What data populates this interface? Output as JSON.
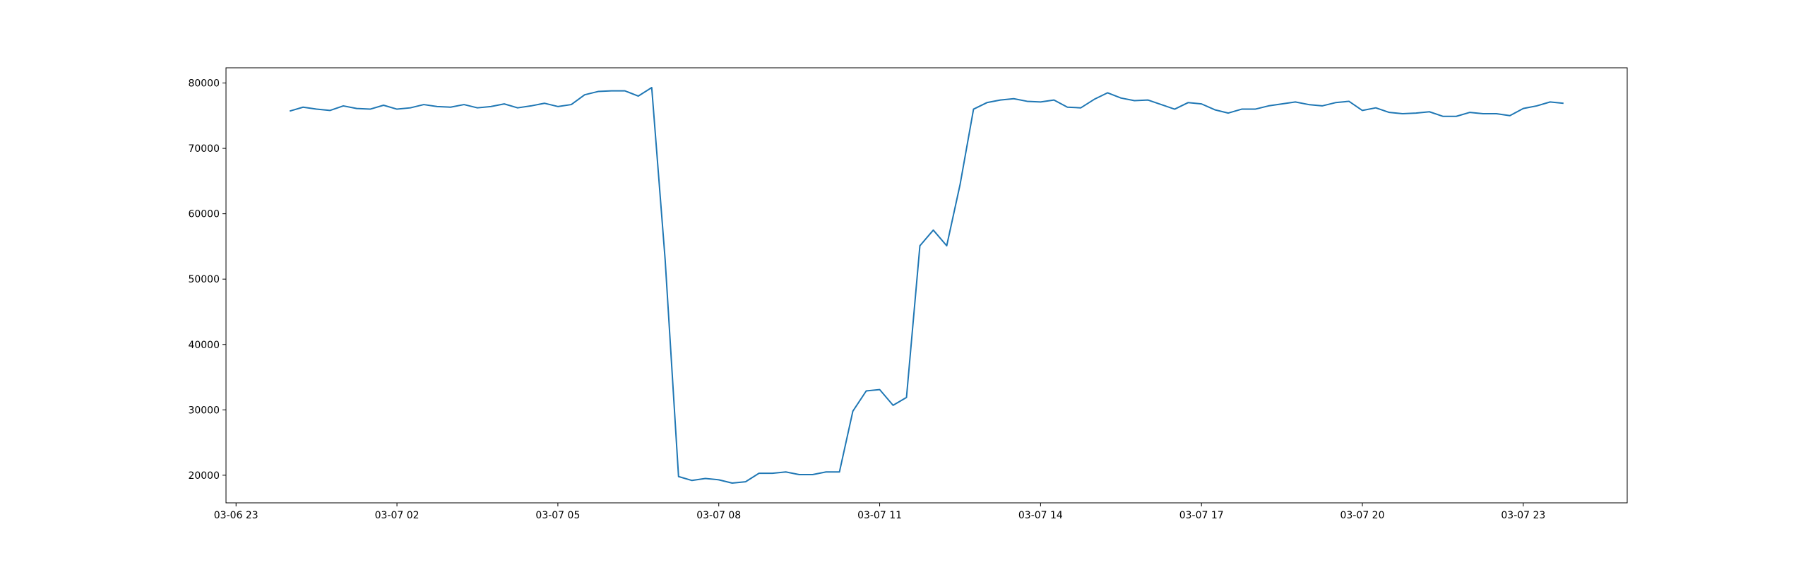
{
  "chart_data": {
    "type": "line",
    "color": "#1f77b4",
    "x": [
      0,
      0.25,
      0.5,
      0.75,
      1,
      1.25,
      1.5,
      1.75,
      2,
      2.25,
      2.5,
      2.75,
      3,
      3.25,
      3.5,
      3.75,
      4,
      4.25,
      4.5,
      4.75,
      5,
      5.25,
      5.5,
      5.75,
      6,
      6.25,
      6.5,
      6.75,
      7,
      7.25,
      7.5,
      7.75,
      8,
      8.25,
      8.5,
      8.75,
      9,
      9.25,
      9.5,
      9.75,
      10,
      10.25,
      10.5,
      10.75,
      11,
      11.25,
      11.5,
      11.75,
      12,
      12.25,
      12.5,
      12.75,
      13,
      13.25,
      13.5,
      13.75,
      14,
      14.25,
      14.5,
      14.75,
      15,
      15.25,
      15.5,
      15.75,
      16,
      16.25,
      16.5,
      16.75,
      17,
      17.25,
      17.5,
      17.75,
      18,
      18.25,
      18.5,
      18.75,
      19,
      19.25,
      19.5,
      19.75,
      20,
      20.25,
      20.5,
      20.75,
      21,
      21.25,
      21.5,
      21.75,
      22,
      22.25,
      22.5,
      22.75,
      23,
      23.25,
      23.5,
      23.75
    ],
    "values": [
      75700,
      76300,
      76000,
      75800,
      76500,
      76100,
      76000,
      76600,
      76000,
      76200,
      76700,
      76400,
      76300,
      76700,
      76200,
      76400,
      76800,
      76200,
      76500,
      76900,
      76400,
      76700,
      78200,
      78700,
      78800,
      78800,
      78000,
      79300,
      53000,
      19800,
      19200,
      19500,
      19300,
      18800,
      19000,
      20300,
      20300,
      20500,
      20100,
      20100,
      20500,
      20500,
      29800,
      32900,
      33100,
      30700,
      31900,
      55100,
      57500,
      55100,
      64500,
      76000,
      77000,
      77400,
      77600,
      77200,
      77100,
      77400,
      76300,
      76200,
      77500,
      78500,
      77700,
      77300,
      77400,
      76700,
      76000,
      77000,
      76800,
      75900,
      75400,
      76000,
      76000,
      76500,
      76800,
      77100,
      76700,
      76500,
      77000,
      77200,
      75800,
      76200,
      75500,
      75300,
      75400,
      75600,
      74900,
      74900,
      75500,
      75300,
      75300,
      75000,
      76100,
      76500,
      77100,
      76900
    ],
    "xlim": [
      -1.1875,
      24.9375
    ],
    "xticks": [
      {
        "value": -1,
        "label": "03-06 23"
      },
      {
        "value": 2,
        "label": "03-07 02"
      },
      {
        "value": 5,
        "label": "03-07 05"
      },
      {
        "value": 8,
        "label": "03-07 08"
      },
      {
        "value": 11,
        "label": "03-07 11"
      },
      {
        "value": 14,
        "label": "03-07 14"
      },
      {
        "value": 17,
        "label": "03-07 17"
      },
      {
        "value": 20,
        "label": "03-07 20"
      },
      {
        "value": 23,
        "label": "03-07 23"
      }
    ],
    "ylim": [
      15775,
      82325
    ],
    "yticks": [
      20000,
      30000,
      40000,
      50000,
      60000,
      70000,
      80000
    ]
  }
}
